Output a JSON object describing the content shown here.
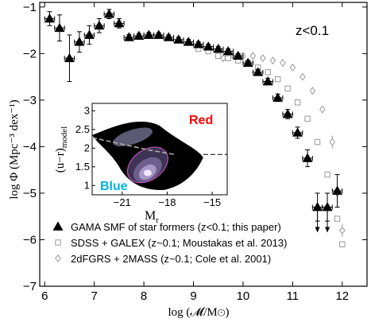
{
  "chart_data": {
    "type": "scatter",
    "annotation": "z<0.1",
    "xlabel": "log (𝓜/M⊙)",
    "ylabel": "log Φ (Mpc⁻³ dex⁻¹)",
    "xlim": [
      5.9,
      12.5
    ],
    "ylim": [
      -7,
      -0.9
    ],
    "xticks": [
      6,
      7,
      8,
      9,
      10,
      11,
      12
    ],
    "yticks": [
      -7,
      -6,
      -5,
      -4,
      -3,
      -2,
      -1
    ],
    "legend_position": "bottom-left",
    "series": [
      {
        "name": "GAMA SMF of star formers (z<0.1; this paper)",
        "marker": "filled-triangle",
        "color": "#000000",
        "points": [
          {
            "x": 6.1,
            "y": -1.25,
            "err": 0.15,
            "xerr": 0.1
          },
          {
            "x": 6.3,
            "y": -1.45,
            "err": 0.28,
            "xerr": 0.1
          },
          {
            "x": 6.5,
            "y": -2.1,
            "err": 0.5,
            "xerr": 0.1
          },
          {
            "x": 6.7,
            "y": -1.75,
            "err": 0.22,
            "xerr": 0.1
          },
          {
            "x": 6.9,
            "y": -1.6,
            "err": 0.2,
            "xerr": 0.1
          },
          {
            "x": 7.1,
            "y": -1.4,
            "err": 0.15,
            "xerr": 0.1
          },
          {
            "x": 7.3,
            "y": -1.15,
            "err": 0.1,
            "xerr": 0.1
          },
          {
            "x": 7.5,
            "y": -1.35,
            "err": 0.1,
            "xerr": 0.1
          },
          {
            "x": 7.7,
            "y": -1.65,
            "err": 0.06,
            "xerr": 0.1
          },
          {
            "x": 7.9,
            "y": -1.62,
            "err": 0.05,
            "xerr": 0.1
          },
          {
            "x": 8.1,
            "y": -1.6,
            "err": 0.05,
            "xerr": 0.1
          },
          {
            "x": 8.3,
            "y": -1.6,
            "err": 0.05,
            "xerr": 0.1
          },
          {
            "x": 8.5,
            "y": -1.65,
            "err": 0.05,
            "xerr": 0.1
          },
          {
            "x": 8.7,
            "y": -1.7,
            "err": 0.05,
            "xerr": 0.1
          },
          {
            "x": 8.9,
            "y": -1.75,
            "err": 0.05,
            "xerr": 0.1
          },
          {
            "x": 9.1,
            "y": -1.8,
            "err": 0.05,
            "xerr": 0.1
          },
          {
            "x": 9.3,
            "y": -1.85,
            "err": 0.05,
            "xerr": 0.1
          },
          {
            "x": 9.5,
            "y": -1.9,
            "err": 0.05,
            "xerr": 0.1
          },
          {
            "x": 9.7,
            "y": -1.95,
            "err": 0.05,
            "xerr": 0.1
          },
          {
            "x": 9.9,
            "y": -2.05,
            "err": 0.05,
            "xerr": 0.1
          },
          {
            "x": 10.1,
            "y": -2.2,
            "err": 0.05,
            "xerr": 0.1
          },
          {
            "x": 10.3,
            "y": -2.4,
            "err": 0.06,
            "xerr": 0.1
          },
          {
            "x": 10.5,
            "y": -2.6,
            "err": 0.07,
            "xerr": 0.1
          },
          {
            "x": 10.7,
            "y": -2.95,
            "err": 0.08,
            "xerr": 0.1
          },
          {
            "x": 10.9,
            "y": -3.3,
            "err": 0.1,
            "xerr": 0.1
          },
          {
            "x": 11.1,
            "y": -3.7,
            "err": 0.12,
            "xerr": 0.1
          },
          {
            "x": 11.3,
            "y": -4.25,
            "err": 0.18,
            "xerr": 0.1
          },
          {
            "x": 11.5,
            "y": -5.3,
            "err": 0.3,
            "xerr": 0.1
          },
          {
            "x": 11.7,
            "y": -5.3,
            "err": 0.3,
            "xerr": 0.1
          },
          {
            "x": 11.9,
            "y": -4.95,
            "err": 0.35,
            "xerr": 0.1
          }
        ]
      },
      {
        "name": "SDSS + GALEX (z~0.1; Moustakas et al. 2013)",
        "marker": "open-square",
        "color": "#999999",
        "points": [
          {
            "x": 9.1,
            "y": -1.9
          },
          {
            "x": 9.3,
            "y": -1.95
          },
          {
            "x": 9.5,
            "y": -2.05
          },
          {
            "x": 9.7,
            "y": -2.1
          },
          {
            "x": 9.9,
            "y": -2.15
          },
          {
            "x": 10.1,
            "y": -2.2
          },
          {
            "x": 10.3,
            "y": -2.3
          },
          {
            "x": 10.5,
            "y": -2.4
          },
          {
            "x": 10.7,
            "y": -2.55
          },
          {
            "x": 10.9,
            "y": -2.75
          },
          {
            "x": 11.1,
            "y": -3.05
          },
          {
            "x": 11.3,
            "y": -3.4
          },
          {
            "x": 11.5,
            "y": -3.9
          },
          {
            "x": 11.7,
            "y": -4.6
          },
          {
            "x": 11.9,
            "y": -5.55
          },
          {
            "x": 12.0,
            "y": -6.1
          }
        ]
      },
      {
        "name": "2dFGRS + 2MASS (z~0.1; Cole et al. 2001)",
        "marker": "open-diamond",
        "color": "#999999",
        "points": [
          {
            "x": 9.6,
            "y": -2.1
          },
          {
            "x": 9.8,
            "y": -2.05
          },
          {
            "x": 10.0,
            "y": -2.05
          },
          {
            "x": 10.2,
            "y": -2.05
          },
          {
            "x": 10.4,
            "y": -2.1
          },
          {
            "x": 10.6,
            "y": -2.15
          },
          {
            "x": 10.8,
            "y": -2.2
          },
          {
            "x": 11.0,
            "y": -2.3
          },
          {
            "x": 11.2,
            "y": -2.5
          },
          {
            "x": 11.4,
            "y": -2.8
          },
          {
            "x": 11.6,
            "y": -3.2
          },
          {
            "x": 11.8,
            "y": -3.9
          },
          {
            "x": 11.9,
            "y": -5.0
          },
          {
            "x": 12.0,
            "y": -5.8
          }
        ]
      }
    ],
    "inset": {
      "xlabel": "M",
      "xlabel_sub": "r",
      "ylabel": "(u−r)",
      "ylabel_sub": "model",
      "xticks": [
        "−21",
        "−18",
        "−15"
      ],
      "yticks": [
        "1",
        "1.5",
        "2",
        "2.5",
        "3"
      ],
      "xlim": [
        -23,
        -14
      ],
      "ylim": [
        0.75,
        3.2
      ],
      "label_red": "Red",
      "label_blue": "Blue",
      "color_red": "#ff0000",
      "color_blue": "#00b4e6"
    }
  }
}
